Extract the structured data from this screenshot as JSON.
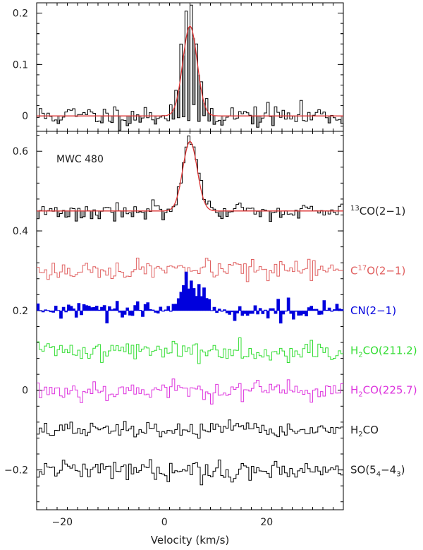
{
  "chart_data": [
    {
      "type": "line",
      "panel": "upper",
      "xlim": [
        -25,
        35
      ],
      "ylim": [
        -0.03,
        0.22
      ],
      "y_ticks": [
        0,
        0.1,
        0.2
      ],
      "y_tick_labels": [
        "0",
        "0.1",
        "0.2"
      ],
      "x_ticks": [
        -20,
        0,
        20
      ],
      "x_tick_labels": [],
      "series": [
        {
          "style": "histogram",
          "color": "#000000",
          "baseline": 0,
          "noise_rms": 0.011,
          "seed": 11,
          "x": [
            0.5,
            1.5,
            2.5,
            3.5,
            4.5,
            5.5,
            6.5,
            7.5,
            8.5,
            9.5
          ],
          "y": [
            0.005,
            0.02,
            0.06,
            0.13,
            0.2,
            0.19,
            0.13,
            0.07,
            0.025,
            0.005
          ],
          "fill_color": "#999999"
        },
        {
          "style": "gaussian",
          "color": "#dd3333",
          "center": 5.0,
          "amplitude": 0.175,
          "fwhm": 3.3,
          "baseline": 0
        }
      ]
    },
    {
      "type": "line",
      "panel": "lower",
      "annotation": "MWC 480",
      "xlabel": "Velocity (km/s)",
      "xlim": [
        -25,
        35
      ],
      "ylim": [
        -0.3,
        0.65
      ],
      "y_ticks": [
        -0.2,
        0,
        0.2,
        0.4,
        0.6
      ],
      "y_tick_labels": [
        "−0.2",
        "0",
        "0.2",
        "0.4",
        "0.6"
      ],
      "x_ticks": [
        -20,
        0,
        20
      ],
      "x_tick_labels": [
        "−20",
        "0",
        "20"
      ],
      "series": [
        {
          "label_main": "CO(2−1)",
          "label_sup": "13",
          "label_sub": "",
          "label_end": "",
          "color": "#000000",
          "baseline": 0.45,
          "noise_rms": 0.012,
          "seed": 3,
          "line_center": 5.0,
          "line_amplitude": 0.175,
          "line_fwhm": 3.3,
          "fit_color": "#dd3333",
          "fill_color": "#999999"
        },
        {
          "label_main": "C",
          "label_sup": "17",
          "label_sub": "",
          "label_end": "O(2−1)",
          "color": "#e06060",
          "baseline": 0.3,
          "noise_rms": 0.012,
          "seed": 17
        },
        {
          "label_main": "CN(2−1)",
          "label_sup": "",
          "label_sub": "",
          "label_end": "",
          "color": "#0000dd",
          "baseline": 0.2,
          "noise_rms": 0.012,
          "seed": 29,
          "filled": true,
          "emission": [
            [
              2.5,
              0.03
            ],
            [
              3.5,
              0.05
            ],
            [
              4.5,
              0.07
            ],
            [
              5.5,
              0.065
            ],
            [
              6.5,
              0.05
            ],
            [
              7.5,
              0.04
            ],
            [
              8.5,
              0.025
            ]
          ]
        },
        {
          "label_main": "H",
          "label_sup": "",
          "label_sub": "2",
          "label_end": "CO(211.2)",
          "color": "#33dd33",
          "baseline": 0.1,
          "noise_rms": 0.013,
          "seed": 41
        },
        {
          "label_main": "H",
          "label_sup": "",
          "label_sub": "2",
          "label_end": "CO(225.7)",
          "color": "#dd33dd",
          "baseline": 0.0,
          "noise_rms": 0.013,
          "seed": 53
        },
        {
          "label_main": "H",
          "label_sup": "",
          "label_sub": "2",
          "label_end": "CO",
          "color": "#000000",
          "baseline": -0.1,
          "noise_rms": 0.01,
          "seed": 67
        },
        {
          "label_main": "SO(5",
          "label_sup": "",
          "label_sub": "4",
          "label_end": "−4",
          "label_sub2": "3",
          "label_tail": ")",
          "color": "#000000",
          "baseline": -0.2,
          "noise_rms": 0.012,
          "seed": 79
        }
      ]
    }
  ]
}
